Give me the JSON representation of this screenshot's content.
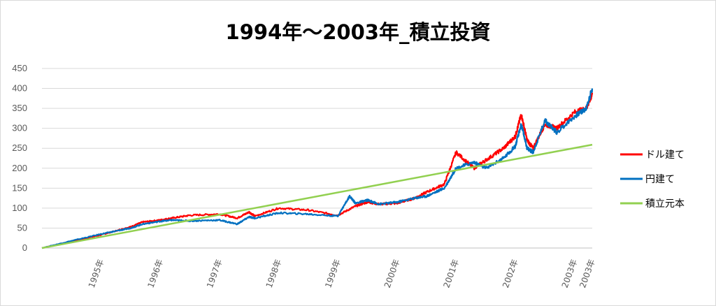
{
  "chart_data": {
    "type": "line",
    "title": "1994年～2003年_積立投資",
    "ylim": [
      0,
      450
    ],
    "y_ticks": [
      "0",
      "50",
      "100",
      "150",
      "200",
      "250",
      "300",
      "350",
      "400",
      "450"
    ],
    "x_tick_labels": [
      "1995年",
      "1996年",
      "1997年",
      "1998年",
      "1999年",
      "2000年",
      "2001年",
      "2002年",
      "2003年",
      "2003年"
    ],
    "grid": true,
    "legend_position": "right",
    "series": [
      {
        "name": "ドル建て",
        "color": "#ff0000",
        "x": [
          0,
          0.5,
          1,
          1.3,
          1.5,
          1.7,
          2,
          2.2,
          2.5,
          3,
          3.3,
          3.5,
          3.6,
          4,
          4.5,
          5,
          5.3,
          5.5,
          5.7,
          6,
          6.3,
          6.5,
          6.8,
          7,
          7.3,
          7.5,
          7.8,
          8,
          8.1,
          8.2,
          8.3,
          8.5,
          8.7,
          9,
          9.2,
          9.3
        ],
        "values": [
          0,
          16,
          33,
          45,
          53,
          65,
          70,
          75,
          82,
          85,
          75,
          90,
          80,
          100,
          95,
          82,
          105,
          115,
          110,
          112,
          125,
          140,
          160,
          240,
          200,
          220,
          250,
          280,
          335,
          270,
          250,
          310,
          300,
          340,
          350,
          385
        ]
      },
      {
        "name": "円建て",
        "color": "#0070c0",
        "x": [
          0,
          0.5,
          1,
          1.3,
          1.5,
          1.7,
          2,
          2.2,
          2.5,
          3,
          3.3,
          3.5,
          3.6,
          4,
          4.5,
          5,
          5.2,
          5.3,
          5.5,
          5.7,
          6,
          6.3,
          6.5,
          6.8,
          7,
          7.3,
          7.5,
          7.8,
          8,
          8.1,
          8.2,
          8.3,
          8.5,
          8.7,
          9,
          9.2,
          9.3
        ],
        "values": [
          0,
          18,
          35,
          44,
          50,
          60,
          67,
          70,
          68,
          70,
          60,
          78,
          75,
          88,
          85,
          80,
          130,
          112,
          120,
          110,
          115,
          125,
          130,
          150,
          200,
          215,
          200,
          225,
          255,
          310,
          250,
          240,
          320,
          290,
          330,
          350,
          400
        ]
      },
      {
        "name": "積立元本",
        "color": "#92d050",
        "x": [
          0,
          9.3
        ],
        "values": [
          0,
          259
        ]
      }
    ]
  }
}
